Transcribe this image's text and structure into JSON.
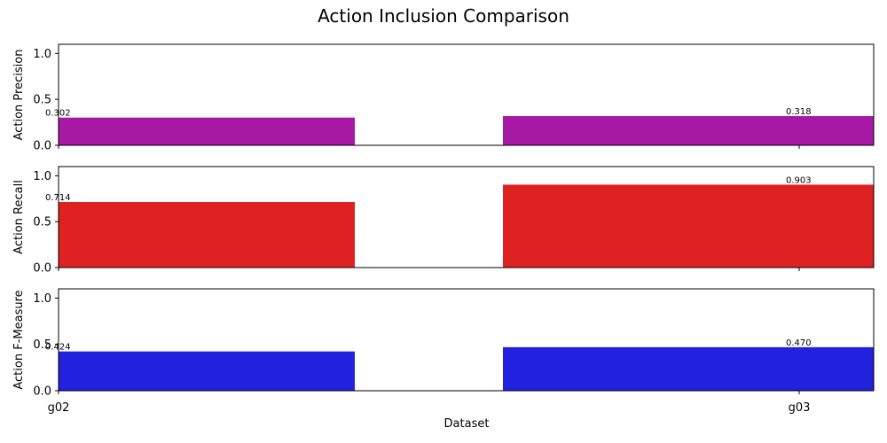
{
  "chart_data": {
    "type": "bar",
    "title": "Action Inclusion Comparison",
    "xlabel": "Dataset",
    "categories": [
      "g02",
      "g03"
    ],
    "ylim": [
      0,
      1.1
    ],
    "yticks": [
      "0.0",
      "0.5",
      "1.0"
    ],
    "grid": false,
    "panels": [
      {
        "ylabel": "Action Precision",
        "color": "#a719a5",
        "values": [
          0.302,
          0.318
        ],
        "labels": [
          "0.302",
          "0.318"
        ]
      },
      {
        "ylabel": "Action Recall",
        "color": "#de2121",
        "values": [
          0.714,
          0.903
        ],
        "labels": [
          "0.714",
          "0.903"
        ]
      },
      {
        "ylabel": "Action F-Measure",
        "color": "#2121de",
        "values": [
          0.424,
          0.47
        ],
        "labels": [
          "0.424",
          "0.470"
        ]
      }
    ]
  }
}
